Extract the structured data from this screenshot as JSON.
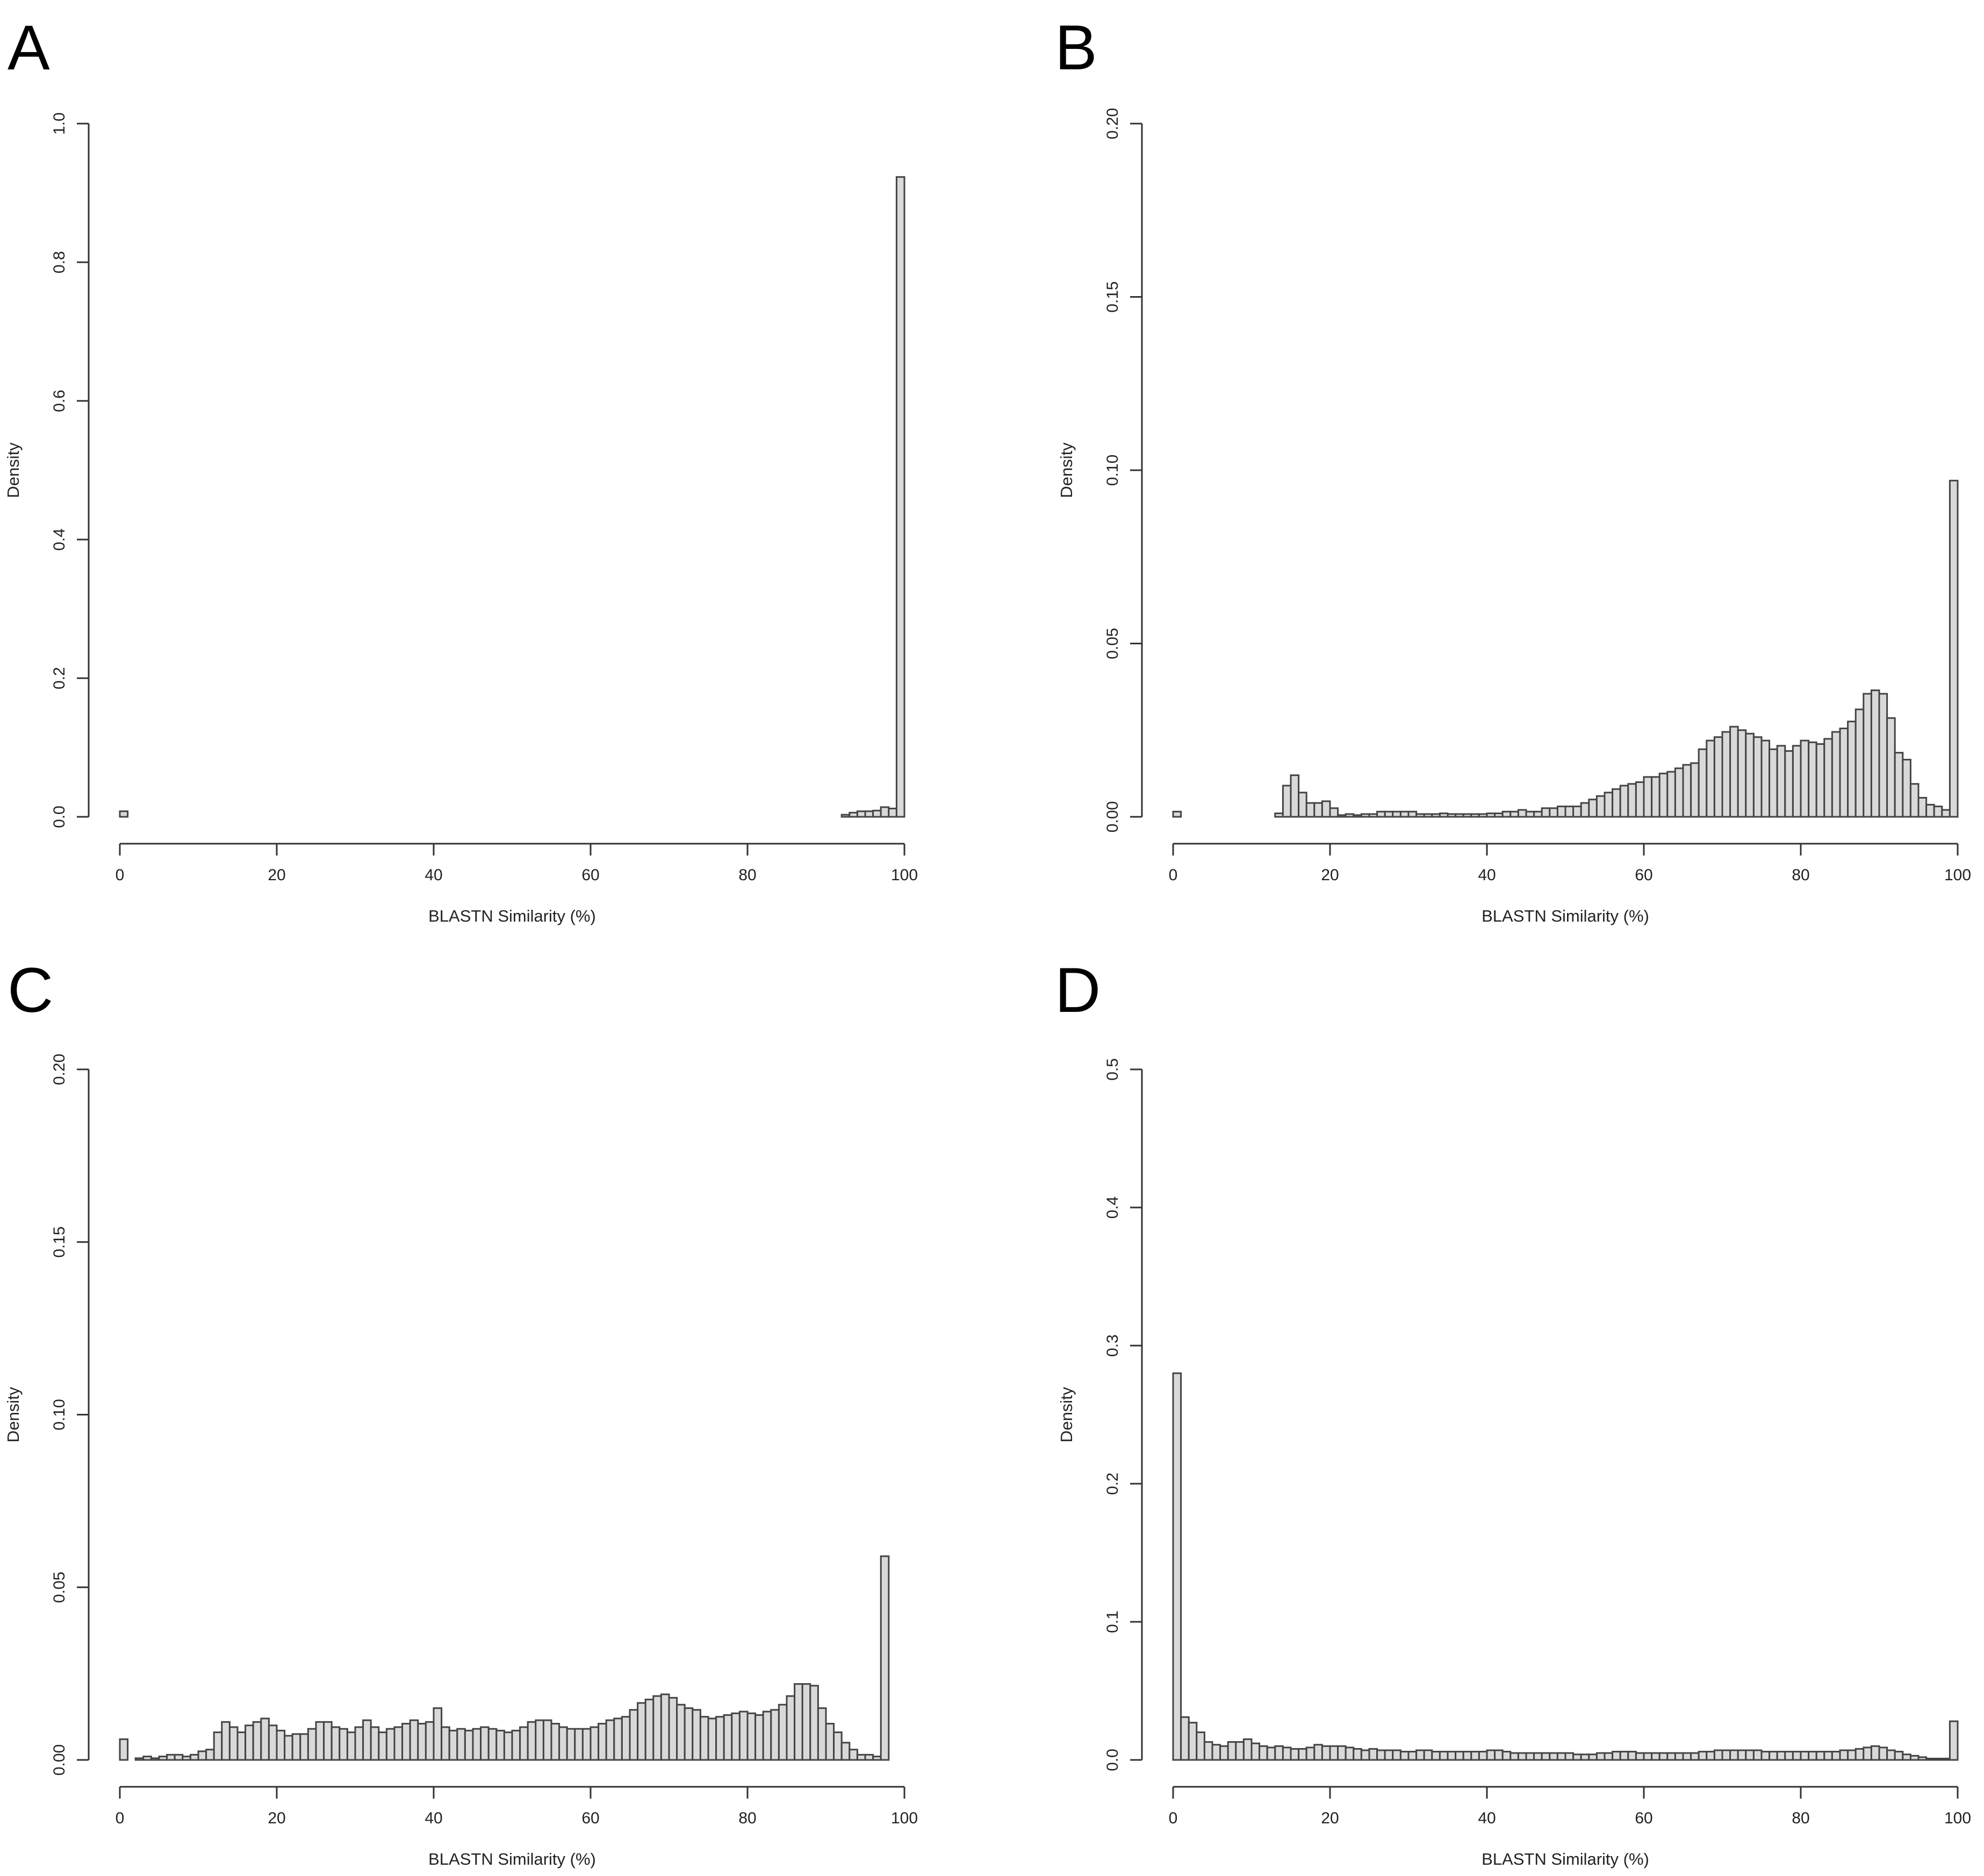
{
  "chart_data": [
    {
      "panel": "A",
      "type": "bar",
      "xlabel": "BLASTN Similarity (%)",
      "ylabel": "Density",
      "xlim": [
        0,
        100
      ],
      "ylim": [
        0,
        1.0
      ],
      "x_ticks": [
        "0",
        "20",
        "40",
        "60",
        "80",
        "100"
      ],
      "y_ticks": [
        "0.0",
        "0.2",
        "0.4",
        "0.6",
        "0.8",
        "1.0"
      ],
      "bar_fill": "#d9d9d9",
      "bin_width": 1,
      "values": [
        0.008,
        0,
        0,
        0,
        0,
        0,
        0,
        0,
        0,
        0,
        0,
        0,
        0,
        0,
        0,
        0,
        0,
        0,
        0,
        0,
        0,
        0,
        0,
        0,
        0,
        0,
        0,
        0,
        0,
        0,
        0,
        0,
        0,
        0,
        0,
        0,
        0,
        0,
        0,
        0,
        0,
        0,
        0,
        0,
        0,
        0,
        0,
        0,
        0,
        0,
        0,
        0,
        0,
        0,
        0,
        0,
        0,
        0,
        0,
        0,
        0,
        0,
        0,
        0,
        0,
        0,
        0,
        0,
        0,
        0,
        0,
        0,
        0,
        0,
        0,
        0,
        0,
        0,
        0,
        0,
        0,
        0,
        0,
        0,
        0,
        0,
        0,
        0,
        0,
        0,
        0,
        0,
        0.003,
        0.006,
        0.008,
        0.008,
        0.009,
        0.014,
        0.012,
        0.923
      ]
    },
    {
      "panel": "B",
      "type": "bar",
      "xlabel": "BLASTN Similarity (%)",
      "ylabel": "Density",
      "xlim": [
        0,
        100
      ],
      "ylim": [
        0,
        0.2
      ],
      "x_ticks": [
        "0",
        "20",
        "40",
        "60",
        "80",
        "100"
      ],
      "y_ticks": [
        "0.00",
        "0.05",
        "0.10",
        "0.15",
        "0.20"
      ],
      "bar_fill": "#d9d9d9",
      "bin_width": 1,
      "values": [
        0.0015,
        0,
        0,
        0,
        0,
        0,
        0,
        0,
        0,
        0,
        0,
        0,
        0,
        0.001,
        0.009,
        0.012,
        0.007,
        0.004,
        0.004,
        0.0045,
        0.0025,
        0.0005,
        0.0008,
        0.0005,
        0.0008,
        0.0008,
        0.0015,
        0.0015,
        0.0015,
        0.0015,
        0.0015,
        0.0008,
        0.0008,
        0.0008,
        0.001,
        0.0008,
        0.0008,
        0.0008,
        0.0008,
        0.0008,
        0.001,
        0.001,
        0.0015,
        0.0015,
        0.002,
        0.0015,
        0.0015,
        0.0025,
        0.0025,
        0.003,
        0.003,
        0.003,
        0.004,
        0.005,
        0.006,
        0.007,
        0.008,
        0.009,
        0.0095,
        0.01,
        0.0115,
        0.0115,
        0.0125,
        0.013,
        0.014,
        0.015,
        0.0155,
        0.0195,
        0.022,
        0.023,
        0.0245,
        0.026,
        0.025,
        0.024,
        0.023,
        0.022,
        0.0195,
        0.0205,
        0.019,
        0.0205,
        0.022,
        0.0215,
        0.021,
        0.0225,
        0.0245,
        0.0255,
        0.0275,
        0.031,
        0.0355,
        0.0365,
        0.0355,
        0.0285,
        0.0185,
        0.0165,
        0.0095,
        0.0055,
        0.0035,
        0.003,
        0.002,
        0.097
      ]
    },
    {
      "panel": "C",
      "type": "bar",
      "xlabel": "BLASTN Similarity (%)",
      "ylabel": "Density",
      "xlim": [
        0,
        100
      ],
      "ylim": [
        0,
        0.2
      ],
      "x_ticks": [
        "0",
        "20",
        "40",
        "60",
        "80",
        "100"
      ],
      "y_ticks": [
        "0.00",
        "0.05",
        "0.10",
        "0.15",
        "0.20"
      ],
      "bar_fill": "#d9d9d9",
      "bin_width": 1,
      "values": [
        0.006,
        0,
        0.0005,
        0.001,
        0.0005,
        0.001,
        0.0015,
        0.0015,
        0.001,
        0.0015,
        0.0025,
        0.003,
        0.008,
        0.011,
        0.0095,
        0.008,
        0.01,
        0.011,
        0.012,
        0.01,
        0.0085,
        0.007,
        0.0075,
        0.0075,
        0.009,
        0.011,
        0.011,
        0.0095,
        0.009,
        0.008,
        0.0095,
        0.0115,
        0.0095,
        0.008,
        0.009,
        0.0095,
        0.0105,
        0.0115,
        0.0105,
        0.011,
        0.015,
        0.0095,
        0.0085,
        0.009,
        0.0085,
        0.009,
        0.0095,
        0.009,
        0.0085,
        0.008,
        0.0085,
        0.0095,
        0.011,
        0.0115,
        0.0115,
        0.0105,
        0.0095,
        0.009,
        0.009,
        0.009,
        0.0095,
        0.0105,
        0.0115,
        0.012,
        0.0125,
        0.0145,
        0.0165,
        0.0175,
        0.0185,
        0.019,
        0.018,
        0.016,
        0.015,
        0.0145,
        0.0125,
        0.012,
        0.0125,
        0.013,
        0.0135,
        0.014,
        0.0135,
        0.013,
        0.014,
        0.0145,
        0.016,
        0.0185,
        0.022,
        0.022,
        0.0215,
        0.015,
        0.0105,
        0.008,
        0.005,
        0.003,
        0.0015,
        0.0015,
        0.001,
        0.059
      ]
    },
    {
      "panel": "D",
      "type": "bar",
      "xlabel": "BLASTN Similarity (%)",
      "ylabel": "Density",
      "xlim": [
        0,
        100
      ],
      "ylim": [
        0,
        0.5
      ],
      "x_ticks": [
        "0",
        "20",
        "40",
        "60",
        "80",
        "100"
      ],
      "y_ticks": [
        "0.0",
        "0.1",
        "0.2",
        "0.3",
        "0.4",
        "0.5"
      ],
      "bar_fill": "#d9d9d9",
      "bin_width": 1,
      "values": [
        0.28,
        0.031,
        0.027,
        0.02,
        0.013,
        0.011,
        0.01,
        0.013,
        0.013,
        0.015,
        0.012,
        0.01,
        0.009,
        0.01,
        0.009,
        0.008,
        0.008,
        0.009,
        0.011,
        0.01,
        0.01,
        0.01,
        0.009,
        0.008,
        0.007,
        0.008,
        0.007,
        0.007,
        0.007,
        0.006,
        0.006,
        0.007,
        0.007,
        0.006,
        0.006,
        0.006,
        0.006,
        0.006,
        0.006,
        0.006,
        0.007,
        0.007,
        0.006,
        0.005,
        0.005,
        0.005,
        0.005,
        0.005,
        0.005,
        0.005,
        0.005,
        0.004,
        0.004,
        0.004,
        0.005,
        0.005,
        0.006,
        0.006,
        0.006,
        0.005,
        0.005,
        0.005,
        0.005,
        0.005,
        0.005,
        0.005,
        0.005,
        0.006,
        0.006,
        0.007,
        0.007,
        0.007,
        0.007,
        0.007,
        0.007,
        0.006,
        0.006,
        0.006,
        0.006,
        0.006,
        0.006,
        0.006,
        0.006,
        0.006,
        0.006,
        0.007,
        0.007,
        0.008,
        0.009,
        0.01,
        0.009,
        0.007,
        0.006,
        0.004,
        0.003,
        0.002,
        0.001,
        0.001,
        0.001,
        0.028
      ]
    }
  ]
}
